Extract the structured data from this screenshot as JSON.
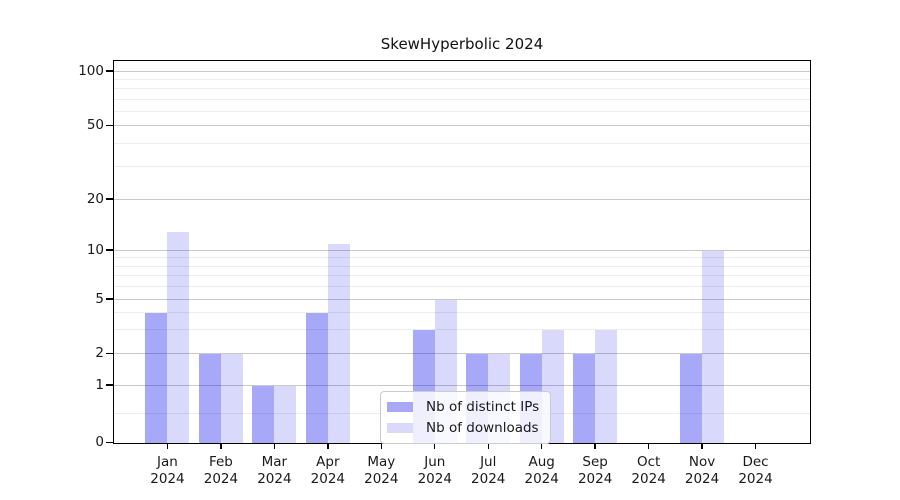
{
  "title": "SkewHyperbolic 2024",
  "legend": {
    "items": [
      {
        "label": "Nb of distinct IPs",
        "swatch": "#a8a8f6"
      },
      {
        "label": "Nb of downloads",
        "swatch": "#d9d9fb"
      }
    ]
  },
  "colors": {
    "bar_distinct_ips": "rgba(20,20,235,0.37)",
    "bar_downloads": "rgba(20,20,235,0.16)",
    "grid_major": "#c9c9c9",
    "grid_minor": "#ececec",
    "axis": "#000000",
    "text": "#1a1a1a"
  },
  "chart_data": {
    "type": "bar",
    "title": "SkewHyperbolic 2024",
    "categories": [
      "Jan 2024",
      "Feb 2024",
      "Mar 2024",
      "Apr 2024",
      "May 2024",
      "Jun 2024",
      "Jul 2024",
      "Aug 2024",
      "Sep 2024",
      "Oct 2024",
      "Nov 2024",
      "Dec 2024"
    ],
    "series": [
      {
        "name": "Nb of distinct IPs",
        "values": [
          4,
          2,
          1,
          4,
          0,
          3,
          2,
          2,
          2,
          0,
          2,
          0
        ]
      },
      {
        "name": "Nb of downloads",
        "values": [
          13,
          2,
          1,
          11,
          0,
          5,
          2,
          3,
          3,
          0,
          10,
          0
        ]
      }
    ],
    "xlabel": "",
    "ylabel": "",
    "yscale": "pseudo-log",
    "yticks_major": [
      0,
      1,
      2,
      5,
      10,
      20,
      50,
      100
    ],
    "yticks_minor": [
      0.5,
      3,
      4,
      6,
      7,
      8,
      9,
      30,
      40,
      60,
      70,
      80,
      90
    ],
    "ylim": [
      0,
      113
    ],
    "grid": "horizontal major+minor",
    "legend_position": "inside lower-center"
  }
}
